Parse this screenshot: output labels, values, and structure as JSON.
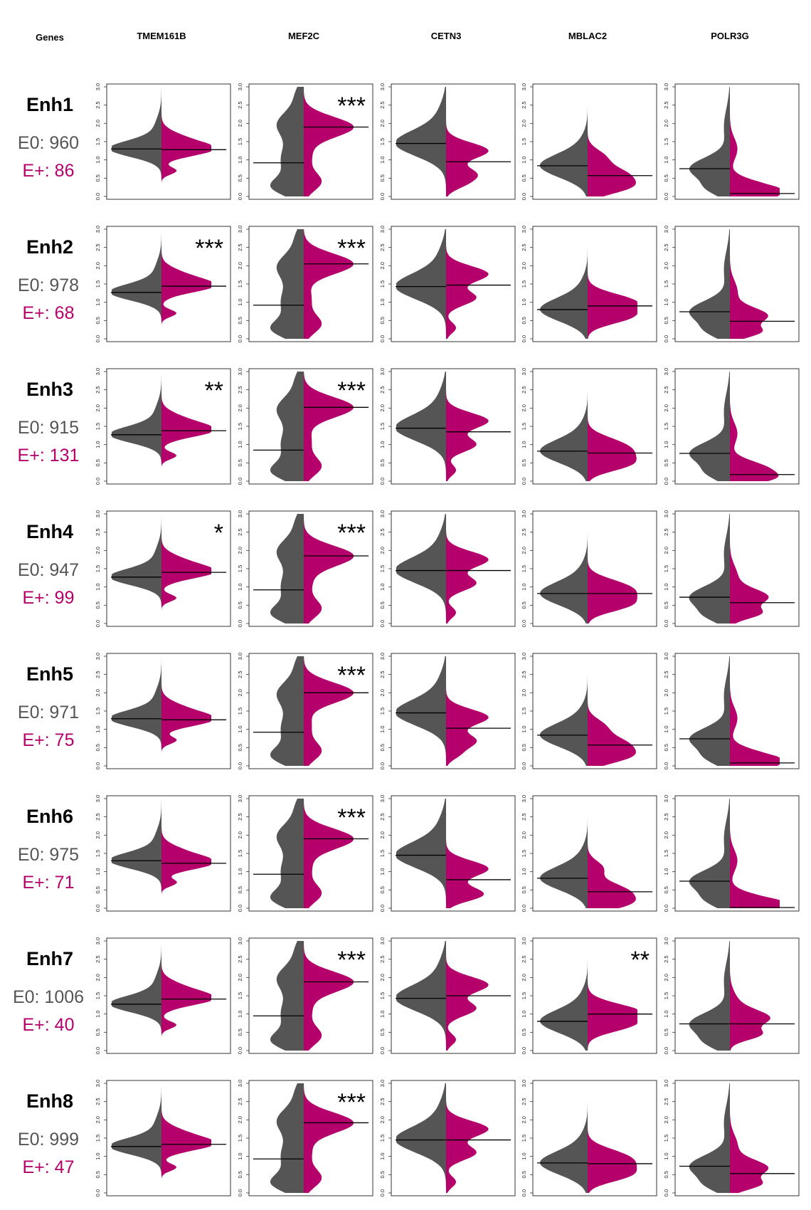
{
  "header": {
    "genes_label": "Genes"
  },
  "colors": {
    "e0": "#555555",
    "eplus": "#B5006B",
    "median": "#000000",
    "frame": "#333333"
  },
  "chart_data": {
    "type": "split-violin",
    "genes": [
      "TMEM161B",
      "MEF2C",
      "CETN3",
      "MBLAC2",
      "POLR3G"
    ],
    "ylim": [
      0,
      3.0
    ],
    "yticks": [
      "0.0",
      "0.5",
      "1.0",
      "1.5",
      "2.0",
      "2.5",
      "3.0"
    ],
    "groups": [
      "E0",
      "E+"
    ],
    "rows": [
      {
        "label": "Enh1",
        "e0_count": "E0: 960",
        "eplus_count": "E+: 86",
        "medians": [
          [
            1.3,
            1.28
          ],
          [
            0.92,
            1.9
          ],
          [
            1.45,
            0.95
          ],
          [
            0.84,
            0.57
          ],
          [
            0.76,
            0.08
          ]
        ],
        "significance": [
          "",
          "***",
          "",
          "",
          ""
        ]
      },
      {
        "label": "Enh2",
        "e0_count": "E0: 978",
        "eplus_count": "E+: 68",
        "medians": [
          [
            1.27,
            1.44
          ],
          [
            0.92,
            2.05
          ],
          [
            1.43,
            1.47
          ],
          [
            0.8,
            0.9
          ],
          [
            0.74,
            0.48
          ]
        ],
        "significance": [
          "***",
          "***",
          "",
          "",
          ""
        ]
      },
      {
        "label": "Enh3",
        "e0_count": "E0: 915",
        "eplus_count": "E+: 131",
        "medians": [
          [
            1.27,
            1.38
          ],
          [
            0.85,
            2.02
          ],
          [
            1.45,
            1.35
          ],
          [
            0.82,
            0.77
          ],
          [
            0.76,
            0.18
          ]
        ],
        "significance": [
          "**",
          "***",
          "",
          "",
          ""
        ]
      },
      {
        "label": "Enh4",
        "e0_count": "E0: 947",
        "eplus_count": "E+: 99",
        "medians": [
          [
            1.27,
            1.4
          ],
          [
            0.92,
            1.85
          ],
          [
            1.45,
            1.45
          ],
          [
            0.82,
            0.82
          ],
          [
            0.72,
            0.57
          ]
        ],
        "significance": [
          "*",
          "***",
          "",
          "",
          ""
        ]
      },
      {
        "label": "Enh5",
        "e0_count": "E0: 971",
        "eplus_count": "E+: 75",
        "medians": [
          [
            1.29,
            1.26
          ],
          [
            0.92,
            2.0
          ],
          [
            1.45,
            1.03
          ],
          [
            0.84,
            0.57
          ],
          [
            0.74,
            0.08
          ]
        ],
        "significance": [
          "",
          "***",
          "",
          "",
          ""
        ]
      },
      {
        "label": "Enh6",
        "e0_count": "E0: 975",
        "eplus_count": "E+: 71",
        "medians": [
          [
            1.3,
            1.23
          ],
          [
            0.93,
            1.9
          ],
          [
            1.45,
            0.78
          ],
          [
            0.82,
            0.45
          ],
          [
            0.74,
            0.02
          ]
        ],
        "significance": [
          "",
          "***",
          "",
          "",
          ""
        ]
      },
      {
        "label": "Enh7",
        "e0_count": "E0: 1006",
        "eplus_count": "E+: 40",
        "medians": [
          [
            1.27,
            1.41
          ],
          [
            0.95,
            1.88
          ],
          [
            1.43,
            1.5
          ],
          [
            0.8,
            1.0
          ],
          [
            0.73,
            0.73
          ]
        ],
        "significance": [
          "",
          "***",
          "",
          "**",
          ""
        ]
      },
      {
        "label": "Enh8",
        "e0_count": "E0: 999",
        "eplus_count": "E+: 47",
        "medians": [
          [
            1.27,
            1.33
          ],
          [
            0.93,
            1.92
          ],
          [
            1.45,
            1.45
          ],
          [
            0.82,
            0.8
          ],
          [
            0.73,
            0.53
          ]
        ],
        "significance": [
          "",
          "***",
          "",
          "",
          ""
        ]
      }
    ]
  }
}
